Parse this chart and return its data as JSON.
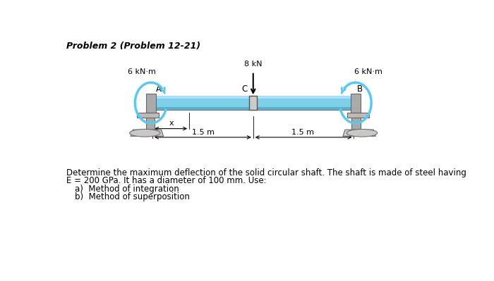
{
  "title": "Problem 2 (Problem 12-21)",
  "title_fontsize": 9,
  "beam_color": "#7ecfe8",
  "beam_color_dark": "#5ab0cc",
  "support_color": "#999999",
  "support_color_light": "#bbbbbb",
  "moment_arc_color": "#5bc8f0",
  "load_label": "8 kN",
  "moment_left_label": "6 kN·m",
  "moment_right_label": "6 kN·m",
  "point_A": "A",
  "point_B": "B",
  "point_C": "C",
  "x_label": "x",
  "dim_left": "1.5 m",
  "dim_right": "1.5 m",
  "desc1": "Determine the maximum deflection of the solid circular shaft. The shaft is made of steel having",
  "desc2": "E = 200 GPa. It has a diameter of 100 mm. Use:",
  "item_a": "a)  Method of integration",
  "item_b": "b)  Method of superposition",
  "text_fontsize": 8.5,
  "bg": "#ffffff"
}
